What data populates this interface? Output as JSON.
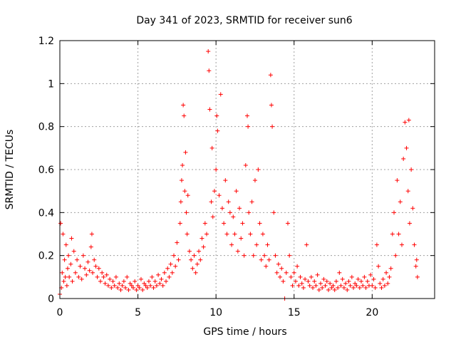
{
  "chart_data": {
    "type": "scatter",
    "title": "Day 341 of 2023, SRMTID for receiver sun6",
    "xlabel": "GPS time / hours",
    "ylabel": "SRMTID / TECUs",
    "xlim": [
      0,
      24
    ],
    "ylim": [
      0,
      1.2
    ],
    "x_ticks": [
      0,
      5,
      10,
      15,
      20
    ],
    "x_tick_labels": [
      "0",
      "5",
      "10",
      "15",
      "20"
    ],
    "y_ticks": [
      0,
      0.2,
      0.4,
      0.6,
      0.8,
      1,
      1.2
    ],
    "y_tick_labels": [
      "0",
      "0.2",
      "0.4",
      "0.6",
      "0.8",
      "1",
      "1.2"
    ],
    "grid": true,
    "marker": "+",
    "series_color": "#ff0000",
    "series": [
      {
        "name": "sun6",
        "points": [
          [
            0.0,
            0.02
          ],
          [
            0.05,
            0.35
          ],
          [
            0.1,
            0.05
          ],
          [
            0.15,
            0.12
          ],
          [
            0.2,
            0.3
          ],
          [
            0.25,
            0.08
          ],
          [
            0.3,
            0.18
          ],
          [
            0.35,
            0.1
          ],
          [
            0.4,
            0.25
          ],
          [
            0.45,
            0.06
          ],
          [
            0.5,
            0.14
          ],
          [
            0.55,
            0.2
          ],
          [
            0.6,
            0.1
          ],
          [
            0.7,
            0.16
          ],
          [
            0.75,
            0.28
          ],
          [
            0.8,
            0.08
          ],
          [
            0.9,
            0.22
          ],
          [
            1.0,
            0.12
          ],
          [
            1.1,
            0.18
          ],
          [
            1.2,
            0.1
          ],
          [
            1.3,
            0.15
          ],
          [
            1.4,
            0.09
          ],
          [
            1.5,
            0.2
          ],
          [
            1.6,
            0.14
          ],
          [
            1.7,
            0.11
          ],
          [
            1.8,
            0.17
          ],
          [
            1.9,
            0.13
          ],
          [
            2.0,
            0.24
          ],
          [
            2.05,
            0.3
          ],
          [
            2.1,
            0.12
          ],
          [
            2.2,
            0.18
          ],
          [
            2.3,
            0.15
          ],
          [
            2.4,
            0.1
          ],
          [
            2.5,
            0.14
          ],
          [
            2.6,
            0.08
          ],
          [
            2.7,
            0.12
          ],
          [
            2.8,
            0.1
          ],
          [
            2.9,
            0.07
          ],
          [
            3.0,
            0.11
          ],
          [
            3.1,
            0.06
          ],
          [
            3.2,
            0.09
          ],
          [
            3.3,
            0.05
          ],
          [
            3.4,
            0.08
          ],
          [
            3.5,
            0.06
          ],
          [
            3.6,
            0.1
          ],
          [
            3.7,
            0.05
          ],
          [
            3.8,
            0.07
          ],
          [
            3.9,
            0.04
          ],
          [
            4.0,
            0.06
          ],
          [
            4.1,
            0.08
          ],
          [
            4.2,
            0.05
          ],
          [
            4.3,
            0.1
          ],
          [
            4.4,
            0.04
          ],
          [
            4.5,
            0.07
          ],
          [
            4.6,
            0.06
          ],
          [
            4.7,
            0.05
          ],
          [
            4.8,
            0.08
          ],
          [
            4.9,
            0.04
          ],
          [
            5.0,
            0.06
          ],
          [
            5.1,
            0.05
          ],
          [
            5.2,
            0.09
          ],
          [
            5.3,
            0.04
          ],
          [
            5.4,
            0.07
          ],
          [
            5.5,
            0.06
          ],
          [
            5.6,
            0.05
          ],
          [
            5.7,
            0.08
          ],
          [
            5.8,
            0.06
          ],
          [
            5.9,
            0.1
          ],
          [
            6.0,
            0.05
          ],
          [
            6.1,
            0.08
          ],
          [
            6.2,
            0.06
          ],
          [
            6.3,
            0.11
          ],
          [
            6.4,
            0.07
          ],
          [
            6.5,
            0.09
          ],
          [
            6.6,
            0.06
          ],
          [
            6.7,
            0.12
          ],
          [
            6.8,
            0.08
          ],
          [
            6.9,
            0.14
          ],
          [
            7.0,
            0.1
          ],
          [
            7.1,
            0.16
          ],
          [
            7.2,
            0.12
          ],
          [
            7.3,
            0.2
          ],
          [
            7.4,
            0.15
          ],
          [
            7.5,
            0.26
          ],
          [
            7.6,
            0.18
          ],
          [
            7.7,
            0.35
          ],
          [
            7.75,
            0.45
          ],
          [
            7.8,
            0.55
          ],
          [
            7.85,
            0.62
          ],
          [
            7.9,
            0.9
          ],
          [
            7.95,
            0.85
          ],
          [
            8.0,
            0.5
          ],
          [
            8.05,
            0.68
          ],
          [
            8.1,
            0.4
          ],
          [
            8.15,
            0.3
          ],
          [
            8.2,
            0.48
          ],
          [
            8.3,
            0.22
          ],
          [
            8.4,
            0.18
          ],
          [
            8.5,
            0.14
          ],
          [
            8.6,
            0.2
          ],
          [
            8.7,
            0.12
          ],
          [
            8.8,
            0.16
          ],
          [
            8.9,
            0.22
          ],
          [
            9.0,
            0.18
          ],
          [
            9.1,
            0.28
          ],
          [
            9.2,
            0.24
          ],
          [
            9.3,
            0.35
          ],
          [
            9.4,
            0.3
          ],
          [
            9.5,
            1.15
          ],
          [
            9.55,
            1.06
          ],
          [
            9.6,
            0.88
          ],
          [
            9.7,
            0.45
          ],
          [
            9.75,
            0.7
          ],
          [
            9.8,
            0.38
          ],
          [
            9.9,
            0.5
          ],
          [
            10.0,
            0.6
          ],
          [
            10.05,
            0.85
          ],
          [
            10.1,
            0.78
          ],
          [
            10.2,
            0.48
          ],
          [
            10.3,
            0.95
          ],
          [
            10.4,
            0.42
          ],
          [
            10.5,
            0.35
          ],
          [
            10.6,
            0.55
          ],
          [
            10.7,
            0.3
          ],
          [
            10.8,
            0.45
          ],
          [
            10.9,
            0.4
          ],
          [
            11.0,
            0.25
          ],
          [
            11.1,
            0.38
          ],
          [
            11.2,
            0.3
          ],
          [
            11.3,
            0.5
          ],
          [
            11.4,
            0.22
          ],
          [
            11.5,
            0.42
          ],
          [
            11.6,
            0.28
          ],
          [
            11.7,
            0.35
          ],
          [
            11.8,
            0.2
          ],
          [
            11.9,
            0.62
          ],
          [
            12.0,
            0.85
          ],
          [
            12.05,
            0.8
          ],
          [
            12.1,
            0.4
          ],
          [
            12.2,
            0.3
          ],
          [
            12.3,
            0.45
          ],
          [
            12.4,
            0.2
          ],
          [
            12.5,
            0.55
          ],
          [
            12.6,
            0.25
          ],
          [
            12.7,
            0.6
          ],
          [
            12.8,
            0.35
          ],
          [
            12.9,
            0.18
          ],
          [
            13.0,
            0.3
          ],
          [
            13.1,
            0.2
          ],
          [
            13.2,
            0.15
          ],
          [
            13.3,
            0.25
          ],
          [
            13.4,
            0.18
          ],
          [
            13.5,
            1.04
          ],
          [
            13.55,
            0.9
          ],
          [
            13.6,
            0.8
          ],
          [
            13.7,
            0.4
          ],
          [
            13.8,
            0.2
          ],
          [
            13.9,
            0.12
          ],
          [
            14.0,
            0.16
          ],
          [
            14.1,
            0.1
          ],
          [
            14.2,
            0.14
          ],
          [
            14.3,
            0.08
          ],
          [
            14.4,
            0.0
          ],
          [
            14.5,
            0.12
          ],
          [
            14.6,
            0.35
          ],
          [
            14.7,
            0.2
          ],
          [
            14.8,
            0.1
          ],
          [
            14.9,
            0.06
          ],
          [
            15.0,
            0.12
          ],
          [
            15.1,
            0.08
          ],
          [
            15.2,
            0.15
          ],
          [
            15.3,
            0.06
          ],
          [
            15.4,
            0.1
          ],
          [
            15.5,
            0.07
          ],
          [
            15.6,
            0.05
          ],
          [
            15.7,
            0.09
          ],
          [
            15.8,
            0.25
          ],
          [
            15.9,
            0.08
          ],
          [
            16.0,
            0.06
          ],
          [
            16.1,
            0.1
          ],
          [
            16.2,
            0.05
          ],
          [
            16.3,
            0.08
          ],
          [
            16.4,
            0.06
          ],
          [
            16.5,
            0.11
          ],
          [
            16.6,
            0.04
          ],
          [
            16.7,
            0.07
          ],
          [
            16.8,
            0.05
          ],
          [
            16.9,
            0.09
          ],
          [
            17.0,
            0.06
          ],
          [
            17.1,
            0.08
          ],
          [
            17.2,
            0.04
          ],
          [
            17.3,
            0.07
          ],
          [
            17.4,
            0.05
          ],
          [
            17.5,
            0.06
          ],
          [
            17.6,
            0.04
          ],
          [
            17.7,
            0.08
          ],
          [
            17.8,
            0.05
          ],
          [
            17.9,
            0.12
          ],
          [
            18.0,
            0.06
          ],
          [
            18.1,
            0.09
          ],
          [
            18.2,
            0.05
          ],
          [
            18.3,
            0.07
          ],
          [
            18.4,
            0.04
          ],
          [
            18.5,
            0.08
          ],
          [
            18.6,
            0.06
          ],
          [
            18.7,
            0.1
          ],
          [
            18.8,
            0.05
          ],
          [
            18.9,
            0.07
          ],
          [
            19.0,
            0.06
          ],
          [
            19.1,
            0.09
          ],
          [
            19.2,
            0.05
          ],
          [
            19.3,
            0.08
          ],
          [
            19.4,
            0.06
          ],
          [
            19.5,
            0.1
          ],
          [
            19.6,
            0.05
          ],
          [
            19.7,
            0.08
          ],
          [
            19.8,
            0.06
          ],
          [
            19.9,
            0.11
          ],
          [
            20.0,
            0.06
          ],
          [
            20.1,
            0.09
          ],
          [
            20.2,
            0.05
          ],
          [
            20.3,
            0.25
          ],
          [
            20.4,
            0.15
          ],
          [
            20.5,
            0.07
          ],
          [
            20.6,
            0.05
          ],
          [
            20.7,
            0.09
          ],
          [
            20.8,
            0.06
          ],
          [
            20.9,
            0.12
          ],
          [
            21.0,
            0.07
          ],
          [
            21.1,
            0.1
          ],
          [
            21.2,
            0.14
          ],
          [
            21.3,
            0.3
          ],
          [
            21.4,
            0.4
          ],
          [
            21.5,
            0.2
          ],
          [
            21.6,
            0.55
          ],
          [
            21.7,
            0.3
          ],
          [
            21.8,
            0.45
          ],
          [
            21.9,
            0.25
          ],
          [
            22.0,
            0.65
          ],
          [
            22.1,
            0.82
          ],
          [
            22.2,
            0.7
          ],
          [
            22.3,
            0.5
          ],
          [
            22.35,
            0.83
          ],
          [
            22.4,
            0.35
          ],
          [
            22.5,
            0.6
          ],
          [
            22.6,
            0.42
          ],
          [
            22.7,
            0.25
          ],
          [
            22.8,
            0.15
          ],
          [
            22.85,
            0.18
          ],
          [
            22.9,
            0.1
          ]
        ]
      }
    ]
  }
}
